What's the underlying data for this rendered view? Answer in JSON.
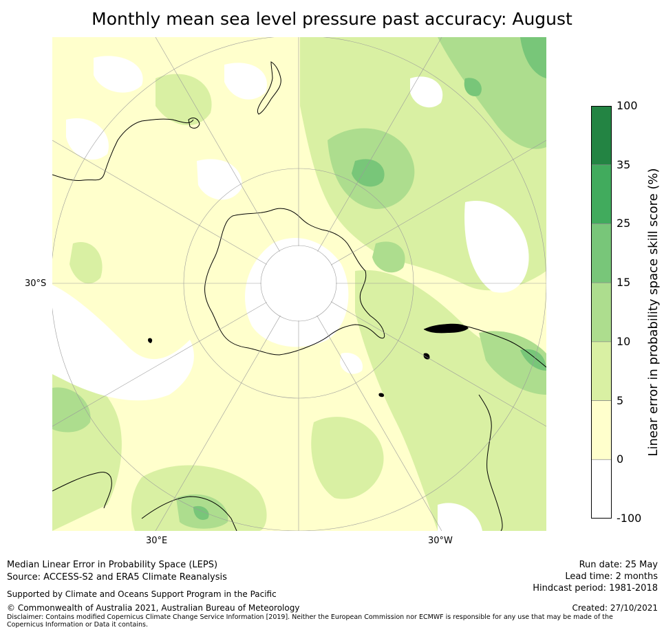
{
  "title": "Monthly mean sea level pressure past accuracy: August",
  "map": {
    "projection": "south-polar-stereographic",
    "graticule_labels": [
      {
        "text": "30°S",
        "kind": "latitude"
      },
      {
        "text": "30°E",
        "kind": "longitude"
      },
      {
        "text": "30°W",
        "kind": "longitude"
      }
    ],
    "land_mask_colors": {
      "coast": "#000000",
      "graticule": "#9a9a9a"
    }
  },
  "colorbar": {
    "label": "Linear error in probability space skill score (%)",
    "levels": [
      {
        "from": -100,
        "to": 0,
        "color": "#ffffff"
      },
      {
        "from": 0,
        "to": 5,
        "color": "#ffffcc"
      },
      {
        "from": 5,
        "to": 10,
        "color": "#d9f0a3"
      },
      {
        "from": 10,
        "to": 15,
        "color": "#addd8e"
      },
      {
        "from": 15,
        "to": 25,
        "color": "#78c679"
      },
      {
        "from": 25,
        "to": 35,
        "color": "#41ab5d"
      },
      {
        "from": 35,
        "to": 100,
        "color": "#238443"
      }
    ],
    "ticks": [
      "-100",
      "0",
      "5",
      "10",
      "15",
      "25",
      "35",
      "100"
    ]
  },
  "footer": {
    "left": {
      "line1": "Median Linear Error in Probability Space (LEPS)",
      "line2": "Source: ACCESS-S2 and ERA5 Climate Reanalysis",
      "support": "Supported by Climate and Oceans Support Program in the Pacific",
      "copyright": "© Commonwealth of Australia 2021, Australian Bureau of Meteorology",
      "disclaimer": "Disclaimer: Contains modified Copernicus Climate Change Service Information [2019]. Neither the European Commission nor ECMWF is responsible for any use that may be made of the Copernicus Information or Data it contains."
    },
    "right": {
      "run_date": "Run date: 25 May",
      "lead_time": "Lead time: 2 months",
      "hindcast": "Hindcast period: 1981-2018",
      "created": "Created: 27/10/2021"
    }
  }
}
